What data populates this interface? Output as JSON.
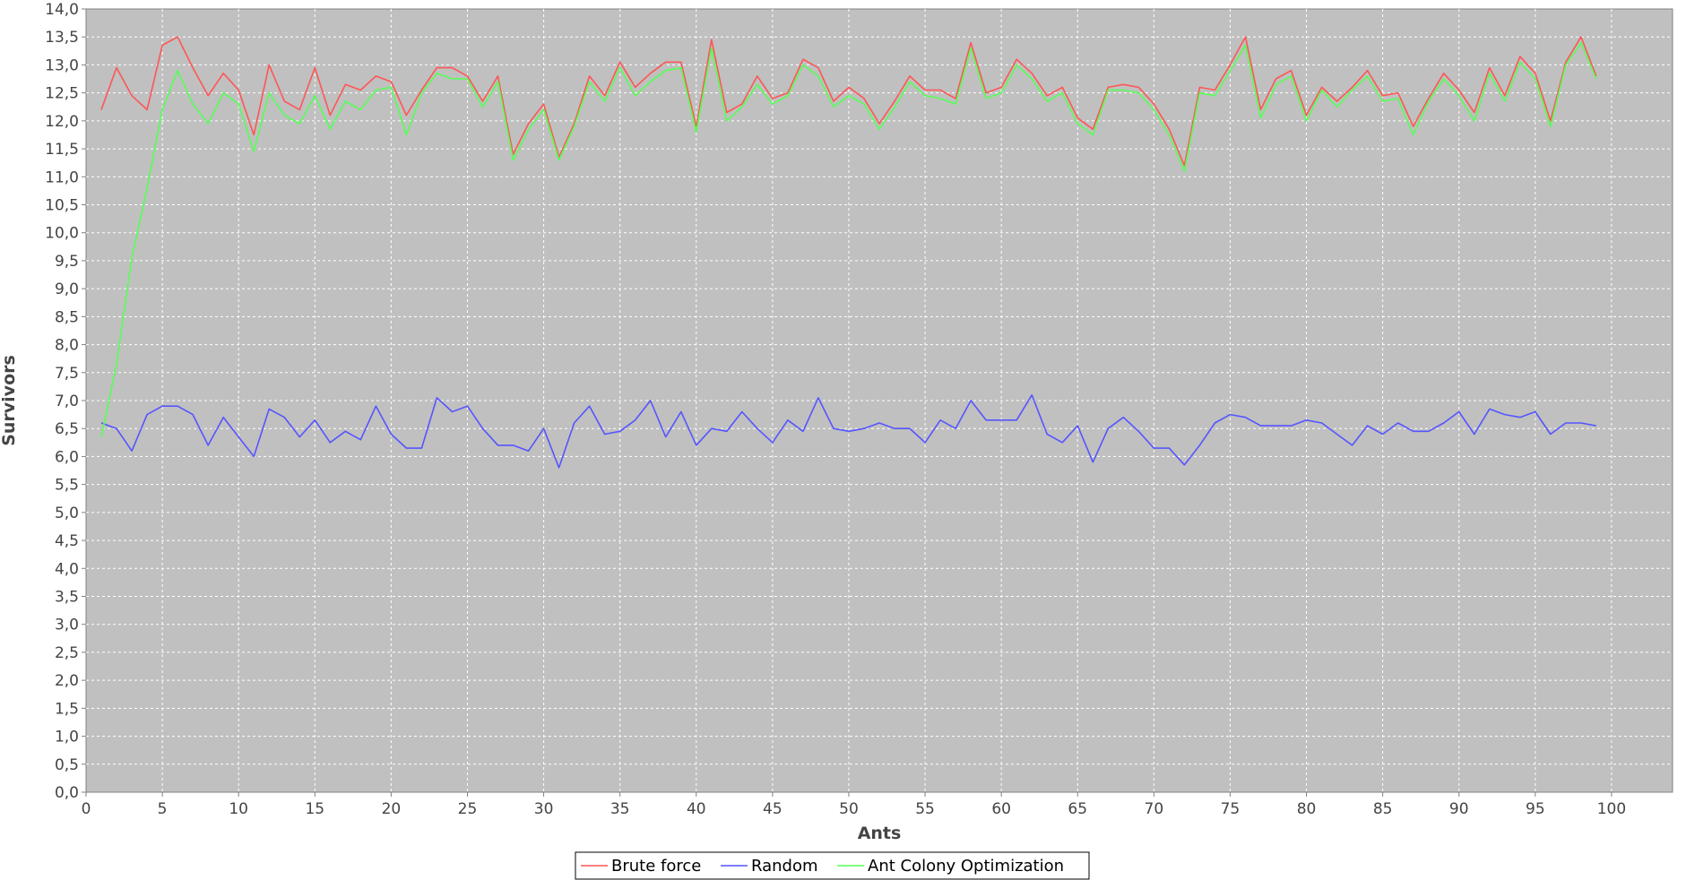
{
  "chart_data": {
    "type": "line",
    "title": "",
    "xlabel": "Ants",
    "ylabel": "Survivors",
    "xlim": [
      0,
      104
    ],
    "ylim": [
      0,
      14
    ],
    "x_ticks": [
      "0",
      "5",
      "10",
      "15",
      "20",
      "25",
      "30",
      "35",
      "40",
      "45",
      "50",
      "55",
      "60",
      "65",
      "70",
      "75",
      "80",
      "85",
      "90",
      "95",
      "100"
    ],
    "y_ticks": [
      "0,0",
      "0,5",
      "1,0",
      "1,5",
      "2,0",
      "2,5",
      "3,0",
      "3,5",
      "4,0",
      "4,5",
      "5,0",
      "5,5",
      "6,0",
      "6,5",
      "7,0",
      "7,5",
      "8,0",
      "8,5",
      "9,0",
      "9,5",
      "10,0",
      "10,5",
      "11,0",
      "11,5",
      "12,0",
      "12,5",
      "13,0",
      "13,5",
      "14,0"
    ],
    "grid": true,
    "legend_position": "bottom-center",
    "x": [
      1,
      2,
      3,
      4,
      5,
      6,
      7,
      8,
      9,
      10,
      11,
      12,
      13,
      14,
      15,
      16,
      17,
      18,
      19,
      20,
      21,
      22,
      23,
      24,
      25,
      26,
      27,
      28,
      29,
      30,
      31,
      32,
      33,
      34,
      35,
      36,
      37,
      38,
      39,
      40,
      41,
      42,
      43,
      44,
      45,
      46,
      47,
      48,
      49,
      50,
      51,
      52,
      53,
      54,
      55,
      56,
      57,
      58,
      59,
      60,
      61,
      62,
      63,
      64,
      65,
      66,
      67,
      68,
      69,
      70,
      71,
      72,
      73,
      74,
      75,
      76,
      77,
      78,
      79,
      80,
      81,
      82,
      83,
      84,
      85,
      86,
      87,
      88,
      89,
      90,
      91,
      92,
      93,
      94,
      95,
      96,
      97,
      98,
      99
    ],
    "series": [
      {
        "name": "Brute force",
        "color": "#ff5555",
        "values": [
          12.2,
          12.95,
          12.45,
          12.2,
          13.35,
          13.5,
          12.95,
          12.45,
          12.85,
          12.55,
          11.75,
          13.0,
          12.35,
          12.2,
          12.95,
          12.1,
          12.65,
          12.55,
          12.8,
          12.7,
          12.1,
          12.55,
          12.95,
          12.95,
          12.8,
          12.35,
          12.8,
          11.4,
          11.95,
          12.3,
          11.35,
          11.95,
          12.8,
          12.45,
          13.05,
          12.6,
          12.85,
          13.05,
          13.05,
          11.9,
          13.45,
          12.15,
          12.3,
          12.8,
          12.4,
          12.5,
          13.1,
          12.95,
          12.35,
          12.6,
          12.4,
          11.95,
          12.35,
          12.8,
          12.55,
          12.55,
          12.4,
          13.4,
          12.5,
          12.6,
          13.1,
          12.85,
          12.45,
          12.6,
          12.05,
          11.85,
          12.6,
          12.65,
          12.6,
          12.3,
          11.85,
          11.2,
          12.6,
          12.55,
          13.0,
          13.5,
          12.2,
          12.75,
          12.9,
          12.1,
          12.6,
          12.35,
          12.6,
          12.9,
          12.45,
          12.5,
          11.9,
          12.4,
          12.85,
          12.55,
          12.15,
          12.95,
          12.45,
          13.15,
          12.85,
          12.0,
          13.05,
          13.5,
          12.8
        ]
      },
      {
        "name": "Random",
        "color": "#5555ff",
        "values": [
          6.6,
          6.5,
          6.1,
          6.75,
          6.9,
          6.9,
          6.75,
          6.2,
          6.7,
          6.35,
          6.0,
          6.85,
          6.7,
          6.35,
          6.65,
          6.25,
          6.45,
          6.3,
          6.9,
          6.4,
          6.15,
          6.15,
          7.05,
          6.8,
          6.9,
          6.5,
          6.2,
          6.2,
          6.1,
          6.5,
          5.8,
          6.6,
          6.9,
          6.4,
          6.45,
          6.65,
          7.0,
          6.35,
          6.8,
          6.2,
          6.5,
          6.45,
          6.8,
          6.5,
          6.25,
          6.65,
          6.45,
          7.05,
          6.5,
          6.45,
          6.5,
          6.6,
          6.5,
          6.5,
          6.25,
          6.65,
          6.5,
          7.0,
          6.65,
          6.65,
          6.65,
          7.1,
          6.4,
          6.25,
          6.55,
          5.9,
          6.5,
          6.7,
          6.45,
          6.15,
          6.15,
          5.85,
          6.2,
          6.6,
          6.75,
          6.7,
          6.55,
          6.55,
          6.55,
          6.65,
          6.6,
          6.4,
          6.2,
          6.55,
          6.4,
          6.6,
          6.45,
          6.45,
          6.6,
          6.8,
          6.4,
          6.85,
          6.75,
          6.7,
          6.8,
          6.4,
          6.6,
          6.6,
          6.55
        ]
      },
      {
        "name": "Ant Colony Optimization",
        "color": "#55ff55",
        "values": [
          6.35,
          7.65,
          9.55,
          10.8,
          12.2,
          12.9,
          12.3,
          11.95,
          12.5,
          12.3,
          11.45,
          12.5,
          12.1,
          11.95,
          12.45,
          11.85,
          12.35,
          12.2,
          12.55,
          12.6,
          11.75,
          12.5,
          12.85,
          12.75,
          12.75,
          12.25,
          12.7,
          11.3,
          11.85,
          12.2,
          11.3,
          11.9,
          12.7,
          12.35,
          12.95,
          12.45,
          12.7,
          12.9,
          12.95,
          11.8,
          13.3,
          12.0,
          12.25,
          12.65,
          12.3,
          12.45,
          13.0,
          12.8,
          12.25,
          12.45,
          12.3,
          11.85,
          12.25,
          12.7,
          12.45,
          12.4,
          12.3,
          13.3,
          12.4,
          12.5,
          13.0,
          12.75,
          12.35,
          12.5,
          11.95,
          11.75,
          12.55,
          12.55,
          12.5,
          12.2,
          11.75,
          11.1,
          12.5,
          12.45,
          12.9,
          13.35,
          12.05,
          12.65,
          12.8,
          12.0,
          12.55,
          12.25,
          12.55,
          12.8,
          12.35,
          12.4,
          11.75,
          12.35,
          12.75,
          12.45,
          12.0,
          12.85,
          12.35,
          13.05,
          12.75,
          11.9,
          13.0,
          13.4,
          12.75
        ]
      }
    ]
  }
}
